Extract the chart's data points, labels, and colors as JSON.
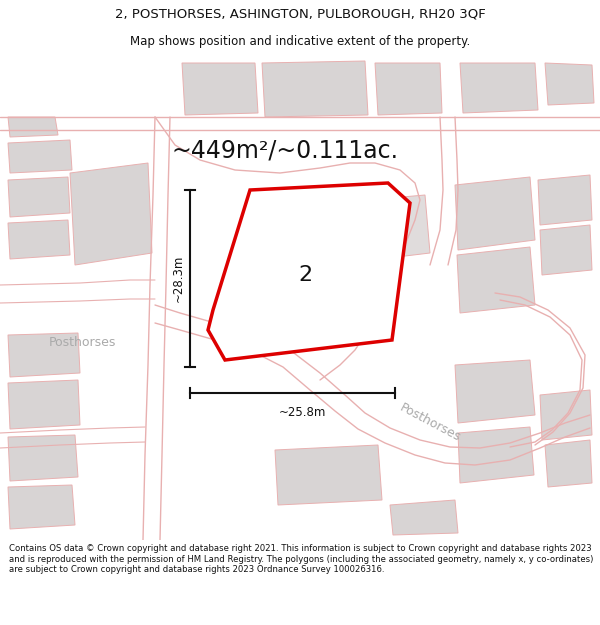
{
  "title": "2, POSTHORSES, ASHINGTON, PULBOROUGH, RH20 3QF",
  "subtitle": "Map shows position and indicative extent of the property.",
  "area_text": "~449m²/~0.111ac.",
  "dim_h": "~28.3m",
  "dim_w": "~25.8m",
  "label_number": "2",
  "label_road1": "Posthorses",
  "label_road2": "Posthorses",
  "footer": "Contains OS data © Crown copyright and database right 2021. This information is subject to Crown copyright and database rights 2023 and is reproduced with the permission of HM Land Registry. The polygons (including the associated geometry, namely x, y co-ordinates) are subject to Crown copyright and database rights 2023 Ordnance Survey 100026316.",
  "bg_color": "#ffffff",
  "map_bg": "#ffffff",
  "plot_color": "#dd0000",
  "plot_fill": "#ffffff",
  "building_color": "#d8d4d4",
  "road_outline_color": "#e8b0b0",
  "dim_color": "#111111",
  "road_label_color": "#aaaaaa",
  "title_color": "#111111",
  "title_fontsize": 9.5,
  "subtitle_fontsize": 8.5,
  "area_fontsize": 17,
  "number_fontsize": 16,
  "dim_fontsize": 8.5,
  "road_label_fontsize": 9,
  "footer_fontsize": 6.1
}
